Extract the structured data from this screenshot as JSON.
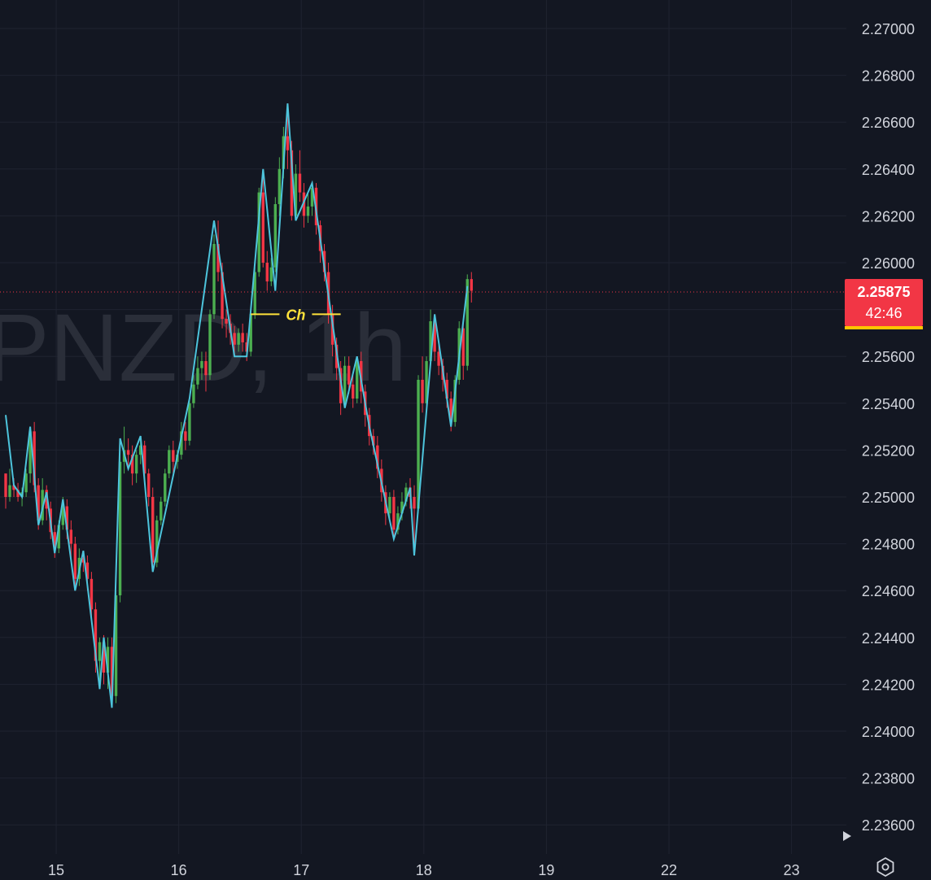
{
  "watermark": "PNZD, 1h",
  "colors": {
    "background": "#131722",
    "grid": "#1f2330",
    "bull": "#26a69a",
    "bull_body": "#4caf50",
    "bear": "#f23645",
    "zigzag": "#4dc4dc",
    "choch": "#ffe23b",
    "axis_text": "#d1d4dc",
    "price_line": "#f23645",
    "tag_underline": "#ffc400"
  },
  "price_tag": {
    "price": "2.25875",
    "timer": "42:46"
  },
  "annotation": {
    "label": "Ch"
  },
  "chart_data": {
    "type": "candlestick",
    "y_axis": {
      "min": 2.2356,
      "max": 2.2714,
      "tick_labels": [
        "2.27000",
        "2.26800",
        "2.26600",
        "2.26400",
        "2.26200",
        "2.26000",
        "2.25600",
        "2.25400",
        "2.25200",
        "2.25000",
        "2.24800",
        "2.24600",
        "2.24400",
        "2.24200",
        "2.24000",
        "2.23800",
        "2.23600"
      ],
      "tick_values": [
        2.27,
        2.268,
        2.266,
        2.264,
        2.262,
        2.26,
        2.256,
        2.254,
        2.252,
        2.25,
        2.248,
        2.246,
        2.244,
        2.242,
        2.24,
        2.238,
        2.236
      ]
    },
    "x_axis": {
      "tick_labels": [
        "15",
        "16",
        "17",
        "18",
        "19",
        "22",
        "23"
      ],
      "tick_positions": [
        1,
        31,
        61,
        91,
        121,
        151,
        181
      ]
    },
    "candles": [
      [
        2.251,
        2.251,
        2.2495,
        2.25
      ],
      [
        2.25,
        2.2512,
        2.2498,
        2.2505
      ],
      [
        2.2505,
        2.2508,
        2.25,
        2.2503
      ],
      [
        2.2503,
        2.2506,
        2.2498,
        2.25
      ],
      [
        2.25,
        2.2504,
        2.2496,
        2.2502
      ],
      [
        2.2502,
        2.2512,
        2.25,
        2.251
      ],
      [
        2.251,
        2.253,
        2.2506,
        2.2528
      ],
      [
        2.2528,
        2.2532,
        2.2502,
        2.2505
      ],
      [
        2.2505,
        2.2508,
        2.2486,
        2.249
      ],
      [
        2.249,
        2.2508,
        2.2488,
        2.2503
      ],
      [
        2.2503,
        2.2505,
        2.249,
        2.2495
      ],
      [
        2.2495,
        2.2498,
        2.2482,
        2.2485
      ],
      [
        2.2485,
        2.2488,
        2.2474,
        2.2478
      ],
      [
        2.2478,
        2.249,
        2.2476,
        2.2488
      ],
      [
        2.2488,
        2.25,
        2.2486,
        2.2496
      ],
      [
        2.2496,
        2.2499,
        2.2482,
        2.2486
      ],
      [
        2.2486,
        2.249,
        2.2474,
        2.248
      ],
      [
        2.248,
        2.2483,
        2.246,
        2.2465
      ],
      [
        2.2465,
        2.2478,
        2.2462,
        2.2474
      ],
      [
        2.2474,
        2.2477,
        2.2468,
        2.2472
      ],
      [
        2.2472,
        2.2475,
        2.246,
        2.2465
      ],
      [
        2.2465,
        2.2468,
        2.2448,
        2.2452
      ],
      [
        2.2452,
        2.2455,
        2.2425,
        2.243
      ],
      [
        2.243,
        2.244,
        2.2418,
        2.2438
      ],
      [
        2.2438,
        2.2441,
        2.242,
        2.2425
      ],
      [
        2.2425,
        2.244,
        2.2418,
        2.2436
      ],
      [
        2.2436,
        2.244,
        2.241,
        2.2415
      ],
      [
        2.2415,
        2.246,
        2.2412,
        2.2458
      ],
      [
        2.2458,
        2.252,
        2.2455,
        2.2515
      ],
      [
        2.2515,
        2.253,
        2.251,
        2.252
      ],
      [
        2.252,
        2.2525,
        2.2512,
        2.2518
      ],
      [
        2.2518,
        2.2522,
        2.2505,
        2.251
      ],
      [
        2.251,
        2.252,
        2.2506,
        2.2518
      ],
      [
        2.2518,
        2.2526,
        2.2514,
        2.2522
      ],
      [
        2.2522,
        2.2524,
        2.2506,
        2.251
      ],
      [
        2.251,
        2.2512,
        2.2496,
        2.25
      ],
      [
        2.25,
        2.2504,
        2.2468,
        2.2472
      ],
      [
        2.2472,
        2.2492,
        2.247,
        2.249
      ],
      [
        2.249,
        2.25,
        2.2488,
        2.2498
      ],
      [
        2.2498,
        2.2512,
        2.2496,
        2.251
      ],
      [
        2.251,
        2.2522,
        2.2508,
        2.252
      ],
      [
        2.252,
        2.2524,
        2.251,
        2.2515
      ],
      [
        2.2515,
        2.252,
        2.2512,
        2.2518
      ],
      [
        2.2518,
        2.2532,
        2.2516,
        2.2528
      ],
      [
        2.2528,
        2.2532,
        2.252,
        2.2524
      ],
      [
        2.2524,
        2.2542,
        2.2522,
        2.254
      ],
      [
        2.254,
        2.2552,
        2.2538,
        2.2548
      ],
      [
        2.2548,
        2.256,
        2.2546,
        2.2555
      ],
      [
        2.2555,
        2.2562,
        2.255,
        2.2558
      ],
      [
        2.2558,
        2.2562,
        2.2545,
        2.2552
      ],
      [
        2.2552,
        2.258,
        2.255,
        2.2578
      ],
      [
        2.2578,
        2.2612,
        2.2576,
        2.2608
      ],
      [
        2.2608,
        2.2618,
        2.2592,
        2.2596
      ],
      [
        2.2596,
        2.26,
        2.2572,
        2.2576
      ],
      [
        2.2576,
        2.258,
        2.2568,
        2.2574
      ],
      [
        2.2574,
        2.2578,
        2.2565,
        2.257
      ],
      [
        2.257,
        2.2573,
        2.256,
        2.2565
      ],
      [
        2.2565,
        2.2572,
        2.2562,
        2.257
      ],
      [
        2.257,
        2.2574,
        2.2562,
        2.2566
      ],
      [
        2.2566,
        2.257,
        2.2558,
        2.2562
      ],
      [
        2.2562,
        2.258,
        2.256,
        2.2578
      ],
      [
        2.2578,
        2.2598,
        2.2576,
        2.2596
      ],
      [
        2.2596,
        2.2632,
        2.2594,
        2.263
      ],
      [
        2.263,
        2.264,
        2.2598,
        2.26
      ],
      [
        2.26,
        2.2605,
        2.2588,
        2.2592
      ],
      [
        2.2592,
        2.2602,
        2.259,
        2.2598
      ],
      [
        2.2598,
        2.2628,
        2.2596,
        2.2625
      ],
      [
        2.2625,
        2.2645,
        2.262,
        2.264
      ],
      [
        2.264,
        2.2658,
        2.2636,
        2.2654
      ],
      [
        2.2654,
        2.2668,
        2.264,
        2.2648
      ],
      [
        2.2648,
        2.2652,
        2.2618,
        2.262
      ],
      [
        2.262,
        2.2642,
        2.2618,
        2.2638
      ],
      [
        2.2638,
        2.2648,
        2.2626,
        2.263
      ],
      [
        2.263,
        2.2634,
        2.2615,
        2.262
      ],
      [
        2.262,
        2.263,
        2.2617,
        2.2624
      ],
      [
        2.2624,
        2.2634,
        2.262,
        2.2632
      ],
      [
        2.2632,
        2.2634,
        2.2612,
        2.2616
      ],
      [
        2.2616,
        2.2618,
        2.26,
        2.2605
      ],
      [
        2.2605,
        2.2608,
        2.2592,
        2.2596
      ],
      [
        2.2596,
        2.26,
        2.2574,
        2.2578
      ],
      [
        2.2578,
        2.2582,
        2.256,
        2.2565
      ],
      [
        2.2565,
        2.2568,
        2.255,
        2.2555
      ],
      [
        2.2555,
        2.2558,
        2.2535,
        2.254
      ],
      [
        2.254,
        2.256,
        2.2538,
        2.2556
      ],
      [
        2.2556,
        2.256,
        2.2544,
        2.2548
      ],
      [
        2.2548,
        2.2552,
        2.2538,
        2.2542
      ],
      [
        2.2542,
        2.256,
        2.254,
        2.2558
      ],
      [
        2.2558,
        2.2562,
        2.254,
        2.2545
      ],
      [
        2.2545,
        2.2548,
        2.253,
        2.2535
      ],
      [
        2.2535,
        2.2538,
        2.2522,
        2.2526
      ],
      [
        2.2526,
        2.2529,
        2.2518,
        2.2522
      ],
      [
        2.2522,
        2.2526,
        2.2508,
        2.2512
      ],
      [
        2.2512,
        2.2516,
        2.2498,
        2.2502
      ],
      [
        2.2502,
        2.2505,
        2.2488,
        2.2493
      ],
      [
        2.2493,
        2.2502,
        2.249,
        2.25
      ],
      [
        2.25,
        2.2503,
        2.2482,
        2.2486
      ],
      [
        2.2486,
        2.2496,
        2.2484,
        2.2493
      ],
      [
        2.2493,
        2.2502,
        2.249,
        2.2498
      ],
      [
        2.2498,
        2.2506,
        2.2496,
        2.2504
      ],
      [
        2.2504,
        2.2508,
        2.2495,
        2.25
      ],
      [
        2.25,
        2.2505,
        2.2475,
        2.2495
      ],
      [
        2.2495,
        2.2552,
        2.2493,
        2.255
      ],
      [
        2.255,
        2.256,
        2.2536,
        2.254
      ],
      [
        2.254,
        2.256,
        2.2538,
        2.2558
      ],
      [
        2.2558,
        2.258,
        2.2556,
        2.2575
      ],
      [
        2.2575,
        2.2578,
        2.2558,
        2.2562
      ],
      [
        2.2562,
        2.2566,
        2.2552,
        2.2556
      ],
      [
        2.2556,
        2.2559,
        2.2545,
        2.255
      ],
      [
        2.255,
        2.2553,
        2.2538,
        2.2542
      ],
      [
        2.2542,
        2.2545,
        2.2528,
        2.2532
      ],
      [
        2.2532,
        2.2552,
        2.253,
        2.255
      ],
      [
        2.255,
        2.2575,
        2.2548,
        2.2572
      ],
      [
        2.2572,
        2.2576,
        2.255,
        2.2556
      ],
      [
        2.2556,
        2.2595,
        2.2554,
        2.2593
      ],
      [
        2.2593,
        2.2596,
        2.2583,
        2.2588
      ]
    ],
    "zigzag": [
      [
        0,
        2.2535
      ],
      [
        2,
        2.2505
      ],
      [
        4,
        2.25
      ],
      [
        6,
        2.253
      ],
      [
        8,
        2.2488
      ],
      [
        10,
        2.2502
      ],
      [
        12,
        2.2476
      ],
      [
        14,
        2.2499
      ],
      [
        17,
        2.246
      ],
      [
        19,
        2.2477
      ],
      [
        23,
        2.2418
      ],
      [
        24,
        2.244
      ],
      [
        26,
        2.241
      ],
      [
        28,
        2.2525
      ],
      [
        30,
        2.2512
      ],
      [
        33,
        2.2526
      ],
      [
        36,
        2.2468
      ],
      [
        45,
        2.2542
      ],
      [
        51,
        2.2618
      ],
      [
        56,
        2.256
      ],
      [
        59,
        2.256
      ],
      [
        63,
        2.264
      ],
      [
        66,
        2.2588
      ],
      [
        69,
        2.2668
      ],
      [
        71,
        2.2618
      ],
      [
        75,
        2.2634
      ],
      [
        83,
        2.2538
      ],
      [
        86,
        2.256
      ],
      [
        89,
        2.253
      ],
      [
        95,
        2.2482
      ],
      [
        99,
        2.2504
      ],
      [
        100,
        2.2475
      ],
      [
        105,
        2.2578
      ],
      [
        109,
        2.253
      ],
      [
        113,
        2.259
      ]
    ],
    "choch": {
      "from_index": 60,
      "to_index": 82,
      "price": 2.2578
    }
  }
}
